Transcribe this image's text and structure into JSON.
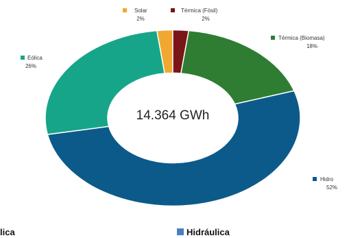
{
  "chart_data": {
    "type": "pie",
    "center_label": "14.364 GWh",
    "slices": [
      {
        "name": "Solar",
        "value": 2,
        "label": "2%",
        "color": "#f0a830"
      },
      {
        "name": "Térmica (Fósil)",
        "value": 2,
        "label": "2%",
        "color": "#7a1518"
      },
      {
        "name": "Térmica (Biomasa)",
        "value": 18,
        "label": "18%",
        "color": "#2e7d32"
      },
      {
        "name": "Hidro",
        "value": 52,
        "label": "52%",
        "color": "#0c5a8a"
      },
      {
        "name": "Eólica",
        "value": 26,
        "label": "26%",
        "color": "#17a589"
      }
    ]
  },
  "footer": {
    "left_label": "lica",
    "right_label": "Hidráulica",
    "right_swatch_color": "#4a7fc1"
  }
}
